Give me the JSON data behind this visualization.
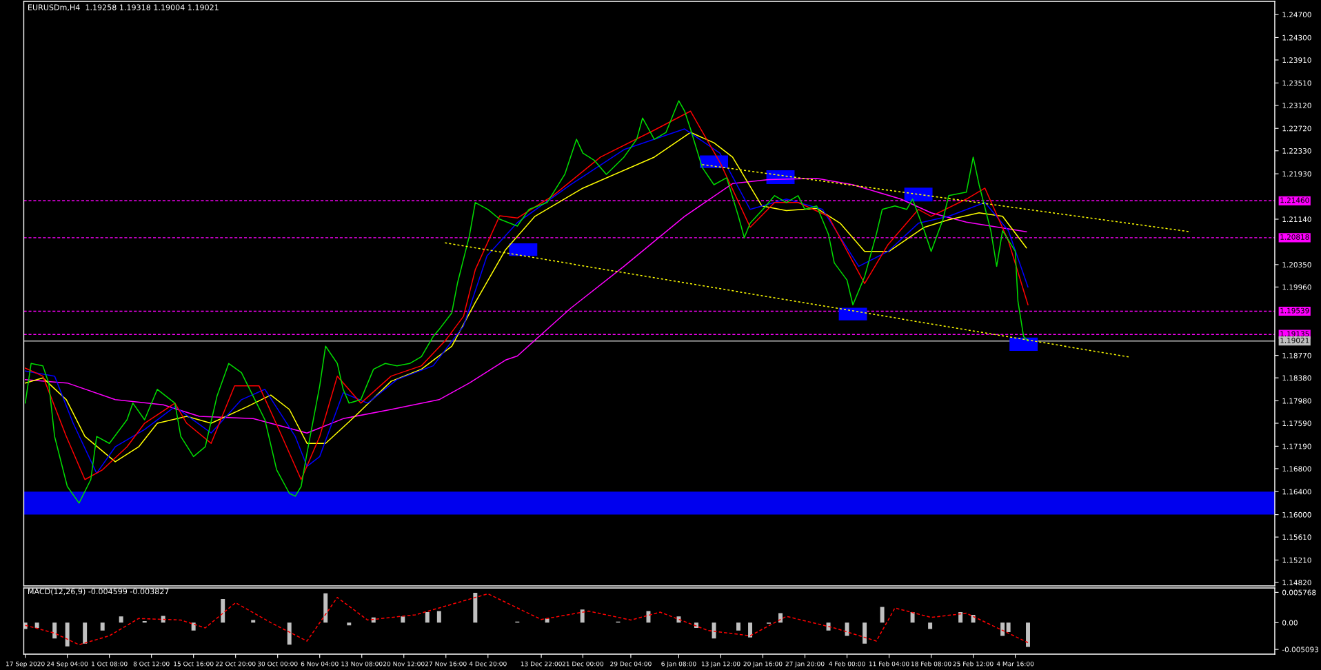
{
  "chart_data": [
    {
      "type": "line",
      "title": "EURUSDm,H4  1.19258 1.19318 1.19004 1.19021",
      "xlim": [
        "2020-09-16T18:00",
        "2021-04-17T21:00"
      ],
      "ylim": [
        1.1476,
        1.2493
      ],
      "tick_labels": "y",
      "grid": false,
      "yticks": [
        {
          "value": 1.247,
          "label": "1.24700"
        },
        {
          "value": 1.243,
          "label": "1.24300"
        },
        {
          "value": 1.2391,
          "label": "1.23910"
        },
        {
          "value": 1.2351,
          "label": "1.23510"
        },
        {
          "value": 1.2312,
          "label": "1.23120"
        },
        {
          "value": 1.2272,
          "label": "1.22720"
        },
        {
          "value": 1.2233,
          "label": "1.22330"
        },
        {
          "value": 1.2193,
          "label": "1.21930"
        },
        {
          "value": 1.2114,
          "label": "1.21140"
        },
        {
          "value": 1.2035,
          "label": "1.20350"
        },
        {
          "value": 1.1996,
          "label": "1.19960"
        },
        {
          "value": 1.1877,
          "label": "1.18770"
        },
        {
          "value": 1.1838,
          "label": "1.18380"
        },
        {
          "value": 1.1798,
          "label": "1.17980"
        },
        {
          "value": 1.1759,
          "label": "1.17590"
        },
        {
          "value": 1.1719,
          "label": "1.17190"
        },
        {
          "value": 1.168,
          "label": "1.16800"
        },
        {
          "value": 1.164,
          "label": "1.16400"
        },
        {
          "value": 1.16,
          "label": "1.16000"
        },
        {
          "value": 1.1561,
          "label": "1.15610"
        },
        {
          "value": 1.1521,
          "label": "1.15210"
        },
        {
          "value": 1.1482,
          "label": "1.14820"
        }
      ],
      "bands": [
        {
          "axis": "y",
          "from": 1.16,
          "to": 1.164,
          "color": "#0000ee"
        }
      ],
      "ref_lines": [
        {
          "axis": "y",
          "value": 1.2146,
          "label": "1.21460",
          "color": "#ff00ff",
          "line_style": "dashed"
        },
        {
          "axis": "y",
          "value": 1.20818,
          "label": "1.20818",
          "color": "#ff00ff",
          "line_style": "dashed"
        },
        {
          "axis": "y",
          "value": 1.19539,
          "label": "1.19539",
          "color": "#ff00ff",
          "line_style": "dashed"
        },
        {
          "axis": "y",
          "value": 1.19135,
          "label": "1.19135",
          "color": "#ff00ff",
          "line_style": "dashed"
        },
        {
          "axis": "y",
          "value": 1.19021,
          "label": "1.19021",
          "color": "#c0c0c0",
          "line_style": "solid"
        }
      ],
      "series": [
        {
          "type": "bar",
          "color": "#0000ff",
          "x": [
            "2020-12-10T20:00",
            "2021-01-12T08:00",
            "2021-01-23T16:00",
            "2021-02-05T00:00",
            "2021-02-16T04:00",
            "2021-03-06T02:00"
          ],
          "base": [
            1.205,
            1.2203,
            1.2175,
            1.1938,
            1.2145,
            1.1885
          ],
          "values": [
            0.0022,
            0.0022,
            0.0024,
            0.0022,
            0.0024,
            0.0023
          ]
        },
        {
          "color": "#ff00ff",
          "x": [
            "2020-09-17T00:00",
            "2020-09-24T04:00",
            "2020-10-02T08:00",
            "2020-10-10T12:00",
            "2020-10-16T16:00",
            "2020-10-25T20:00",
            "2020-10-31T00:00",
            "2020-11-04T00:00",
            "2020-11-10T04:00",
            "2020-11-18T08:00",
            "2020-11-26T12:00",
            "2020-12-01T16:00",
            "2020-12-07T20:00",
            "2020-12-09T20:00",
            "2020-12-18T22:00",
            "2020-12-28T00:00",
            "2021-01-07T08:00",
            "2021-01-15T12:00",
            "2021-01-21T16:00",
            "2021-01-29T20:00",
            "2021-02-05T00:00",
            "2021-02-13T04:00",
            "2021-02-18T08:00",
            "2021-02-24T08:00",
            "2021-03-06T14:00"
          ],
          "values": [
            1.1835,
            1.1829,
            1.18,
            1.1791,
            1.1771,
            1.1767,
            1.1753,
            1.1742,
            1.1767,
            1.1783,
            1.18,
            1.1829,
            1.1869,
            1.1876,
            1.1959,
            1.2032,
            1.2119,
            1.2176,
            1.2183,
            1.2185,
            1.2174,
            1.2149,
            1.2125,
            1.2109,
            1.2092
          ]
        },
        {
          "color": "#ffff00",
          "x": [
            "2020-09-17T00:00",
            "2020-09-20T00:00",
            "2020-09-24T00:00",
            "2020-09-27T04:00",
            "2020-10-02T08:00",
            "2020-10-06T08:00",
            "2020-10-09T12:00",
            "2020-10-14T12:00",
            "2020-10-18T16:00",
            "2020-10-24T20:00",
            "2020-10-28T20:00",
            "2020-11-01T00:00",
            "2020-11-04T00:00",
            "2020-11-07T04:00",
            "2020-11-12T04:00",
            "2020-11-18T08:00",
            "2020-11-23T12:00",
            "2020-11-28T16:00",
            "2020-12-02T16:00",
            "2020-12-07T20:00",
            "2020-12-12T20:00",
            "2020-12-21T00:00",
            "2021-01-02T04:00",
            "2021-01-08T08:00",
            "2021-01-12T08:00",
            "2021-01-15T12:00",
            "2021-01-20T12:00",
            "2021-01-24T16:00",
            "2021-01-29T20:00",
            "2021-02-02T20:00",
            "2021-02-07T00:00",
            "2021-02-11T04:00",
            "2021-02-17T04:00",
            "2021-02-21T08:00",
            "2021-02-26T12:00",
            "2021-03-02T12:00",
            "2021-03-06T14:00"
          ],
          "values": [
            1.1829,
            1.1838,
            1.18,
            1.1736,
            1.1692,
            1.1718,
            1.1759,
            1.1771,
            1.1759,
            1.1788,
            1.1808,
            1.1783,
            1.1724,
            1.1724,
            1.1771,
            1.1832,
            1.1853,
            1.1893,
            1.1969,
            1.2061,
            1.2119,
            1.2168,
            1.2222,
            1.2265,
            1.2247,
            1.2222,
            1.2137,
            1.2129,
            1.2133,
            1.2107,
            1.2058,
            1.2058,
            1.21,
            1.2113,
            1.2125,
            1.2119,
            1.2064
          ]
        },
        {
          "color": "#0000ff",
          "x": [
            "2020-09-17T00:00",
            "2020-09-22T00:00",
            "2020-09-25T04:00",
            "2020-09-29T04:00",
            "2020-10-02T08:00",
            "2020-10-07T08:00",
            "2020-10-12T12:00",
            "2020-10-18T16:00",
            "2020-10-23T20:00",
            "2020-10-27T20:00",
            "2020-11-02T00:00",
            "2020-11-04T00:00",
            "2020-11-06T04:00",
            "2020-11-10T04:00",
            "2020-11-14T08:00",
            "2020-11-19T08:00",
            "2020-11-25T12:00",
            "2020-11-30T16:00",
            "2020-12-04T16:00",
            "2020-12-09T20:00",
            "2020-12-18T22:00",
            "2020-12-28T00:00",
            "2021-01-07T08:00",
            "2021-01-13T08:00",
            "2021-01-18T12:00",
            "2021-01-24T16:00",
            "2021-01-30T20:00",
            "2021-02-06T00:00",
            "2021-02-11T00:00",
            "2021-02-16T04:00",
            "2021-02-21T08:00",
            "2021-02-27T12:00",
            "2021-03-03T12:00",
            "2021-03-06T20:00"
          ],
          "values": [
            1.185,
            1.1841,
            1.1759,
            1.1672,
            1.1718,
            1.1748,
            1.1788,
            1.1742,
            1.18,
            1.1818,
            1.1736,
            1.1684,
            1.1701,
            1.1812,
            1.1794,
            1.1835,
            1.1859,
            1.1928,
            1.205,
            1.2108,
            1.2174,
            1.2235,
            1.2271,
            1.2229,
            1.2131,
            1.2149,
            1.2131,
            1.2032,
            1.2058,
            1.2107,
            1.2119,
            1.2143,
            1.2094,
            1.1996
          ]
        },
        {
          "color": "#ff0000",
          "x": [
            "2020-09-17T00:00",
            "2020-09-20T00:00",
            "2020-09-24T00:00",
            "2020-09-27T04:00",
            "2020-09-30T04:00",
            "2020-10-04T08:00",
            "2020-10-07T08:00",
            "2020-10-12T12:00",
            "2020-10-14T12:00",
            "2020-10-18T16:00",
            "2020-10-22T16:00",
            "2020-10-26T20:00",
            "2020-10-30T00:00",
            "2020-11-03T00:00",
            "2020-11-06T04:00",
            "2020-11-09T04:00",
            "2020-11-13T04:00",
            "2020-11-18T08:00",
            "2020-11-23T12:00",
            "2020-11-27T16:00",
            "2020-11-30T16:00",
            "2020-12-02T16:00",
            "2020-12-06T20:00",
            "2020-12-09T20:00",
            "2020-12-15T22:00",
            "2020-12-24T00:00",
            "2021-01-02T04:00",
            "2021-01-08T08:00",
            "2021-01-13T12:00",
            "2021-01-18T12:00",
            "2021-01-22T16:00",
            "2021-01-26T16:00",
            "2021-01-31T20:00",
            "2021-02-07T00:00",
            "2021-02-11T00:00",
            "2021-02-16T04:00",
            "2021-02-18T08:00",
            "2021-02-24T08:00",
            "2021-02-27T12:00",
            "2021-03-03T12:00",
            "2021-03-06T20:00"
          ],
          "values": [
            1.1855,
            1.1841,
            1.1736,
            1.1661,
            1.1678,
            1.1718,
            1.1759,
            1.1794,
            1.1759,
            1.1724,
            1.1824,
            1.1824,
            1.1753,
            1.1661,
            1.1736,
            1.1841,
            1.1794,
            1.1841,
            1.1859,
            1.1904,
            1.1945,
            1.2026,
            1.212,
            1.2116,
            1.2155,
            1.2222,
            1.2269,
            1.2302,
            1.221,
            1.21,
            1.2143,
            1.2143,
            1.2119,
            1.2002,
            1.207,
            1.2131,
            1.2119,
            1.2149,
            1.2168,
            1.2076,
            1.1965
          ]
        },
        {
          "color": "#00dd00",
          "x": [
            "2020-09-17T00:00",
            "2020-09-18T00:00",
            "2020-09-20T00:00",
            "2020-09-21T00:00",
            "2020-09-22T00:00",
            "2020-09-24T04:00",
            "2020-09-26T04:00",
            "2020-09-28T04:00",
            "2020-09-29T04:00",
            "2020-10-01T08:00",
            "2020-10-04T08:00",
            "2020-10-05T08:00",
            "2020-10-07T08:00",
            "2020-10-09T12:00",
            "2020-10-12T12:00",
            "2020-10-13T12:00",
            "2020-10-15T16:00",
            "2020-10-17T16:00",
            "2020-10-19T16:00",
            "2020-10-21T16:00",
            "2020-10-23T20:00",
            "2020-10-25T20:00",
            "2020-10-27T20:00",
            "2020-10-29T20:00",
            "2020-11-01T00:00",
            "2020-11-02T00:00",
            "2020-11-03T00:00",
            "2020-11-04T00:00",
            "2020-11-06T04:00",
            "2020-11-07T04:00",
            "2020-11-09T04:00",
            "2020-11-10T04:00",
            "2020-11-11T04:00",
            "2020-11-13T04:00",
            "2020-11-15T08:00",
            "2020-11-17T08:00",
            "2020-11-19T08:00",
            "2020-11-21T12:00",
            "2020-11-23T12:00",
            "2020-11-25T12:00",
            "2020-11-26T12:00",
            "2020-11-28T16:00",
            "2020-11-29T16:00",
            "2020-12-01T16:00",
            "2020-12-02T16:00",
            "2020-12-04T20:00",
            "2020-12-06T20:00",
            "2020-12-09T20:00",
            "2020-12-11T20:00",
            "2020-12-14T22:00",
            "2020-12-17T22:00",
            "2020-12-19T22:00",
            "2020-12-21T00:00",
            "2020-12-23T00:00",
            "2020-12-25T00:00",
            "2020-12-28T00:00",
            "2020-12-30T04:00",
            "2020-12-31T04:00",
            "2021-01-02T04:00",
            "2021-01-04T04:00",
            "2021-01-06T08:00",
            "2021-01-07T08:00",
            "2021-01-08T08:00",
            "2021-01-10T08:00",
            "2021-01-12T08:00",
            "2021-01-14T12:00",
            "2021-01-16T12:00",
            "2021-01-17T12:00",
            "2021-01-18T12:00",
            "2021-01-20T16:00",
            "2021-01-22T16:00",
            "2021-01-24T16:00",
            "2021-01-26T16:00",
            "2021-01-27T20:00",
            "2021-01-29T20:00",
            "2021-01-31T20:00",
            "2021-02-01T20:00",
            "2021-02-04T00:00",
            "2021-02-05T00:00",
            "2021-02-07T00:00",
            "2021-02-09T00:00",
            "2021-02-10T00:00",
            "2021-02-12T04:00",
            "2021-02-14T04:00",
            "2021-02-15T04:00",
            "2021-02-17T04:00",
            "2021-02-18T08:00",
            "2021-02-20T08:00",
            "2021-02-21T08:00",
            "2021-02-24T08:00",
            "2021-02-25T12:00",
            "2021-02-26T12:00",
            "2021-02-28T12:00",
            "2021-03-01T12:00",
            "2021-03-02T12:00",
            "2021-03-04T16:00",
            "2021-03-05T03:00",
            "2021-03-06T02:00",
            "2021-03-06T20:00"
          ],
          "values": [
            1.1794,
            1.1863,
            1.1859,
            1.1829,
            1.1736,
            1.1649,
            1.162,
            1.1661,
            1.1736,
            1.1724,
            1.1765,
            1.1794,
            1.1765,
            1.1818,
            1.1794,
            1.1736,
            1.1701,
            1.1718,
            1.1806,
            1.1863,
            1.1847,
            1.1806,
            1.1765,
            1.1678,
            1.1637,
            1.1632,
            1.1649,
            1.1707,
            1.1824,
            1.1893,
            1.1863,
            1.1818,
            1.1794,
            1.18,
            1.1853,
            1.1863,
            1.1859,
            1.1863,
            1.1875,
            1.191,
            1.1922,
            1.1951,
            1.2004,
            1.2085,
            1.2143,
            1.2131,
            1.2114,
            1.2102,
            1.2131,
            1.2143,
            1.2192,
            1.2253,
            1.2229,
            1.2216,
            1.2192,
            1.2222,
            1.2253,
            1.229,
            1.2253,
            1.2265,
            1.232,
            1.2302,
            1.2271,
            1.2204,
            1.2174,
            1.2186,
            1.2119,
            1.2082,
            1.2107,
            1.2131,
            1.2155,
            1.2143,
            1.2155,
            1.2131,
            1.2137,
            1.2088,
            1.2038,
            1.2008,
            1.1965,
            1.2014,
            1.2088,
            1.2131,
            1.2137,
            1.2131,
            1.2149,
            1.2094,
            1.2058,
            1.2113,
            1.2155,
            1.2161,
            1.2222,
            1.2174,
            1.2094,
            1.2032,
            1.2094,
            1.2058,
            1.1971,
            1.191,
            1.1902
          ]
        },
        {
          "color": "#ffff00",
          "line_style": "dotted",
          "x": [
            "2021-01-10T08:00",
            "2021-04-03T13:00"
          ],
          "values": [
            1.2209,
            1.2092
          ]
        },
        {
          "color": "#ffff00",
          "line_style": "dotted",
          "x": [
            "2020-11-27T12:00",
            "2021-03-24T06:00"
          ],
          "values": [
            1.2073,
            1.1874
          ]
        }
      ]
    },
    {
      "type": "bar",
      "title": "MACD(12,26,9) -0.004599 -0.003827",
      "xlim": [
        "2020-09-16T18:00",
        "2021-04-17T21:00"
      ],
      "ylim": [
        -0.006,
        0.0066
      ],
      "grid": false,
      "yticks": [
        0.005768,
        {
          "value": 0,
          "label": "0.00"
        },
        -0.005093
      ],
      "xticks": [
        {
          "value": "2020-09-17T00:00",
          "label": "17 Sep 2020"
        },
        {
          "value": "2020-09-24T04:00",
          "label": "24 Sep 04:00"
        },
        {
          "value": "2020-10-01T08:00",
          "label": "1 Oct 08:00"
        },
        {
          "value": "2020-10-08T12:00",
          "label": "8 Oct 12:00"
        },
        {
          "value": "2020-10-15T16:00",
          "label": "15 Oct 16:00"
        },
        {
          "value": "2020-10-22T20:00",
          "label": "22 Oct 20:00"
        },
        {
          "value": "2020-10-30T00:00",
          "label": "30 Oct 00:00"
        },
        {
          "value": "2020-11-06T04:00",
          "label": "6 Nov 04:00"
        },
        {
          "value": "2020-11-13T08:00",
          "label": "13 Nov 08:00"
        },
        {
          "value": "2020-11-20T12:00",
          "label": "20 Nov 12:00"
        },
        {
          "value": "2020-11-27T16:00",
          "label": "27 Nov 16:00"
        },
        {
          "value": "2020-12-04T20:00",
          "label": "4 Dec 20:00"
        },
        {
          "value": "2020-12-13T22:00",
          "label": "13 Dec 22:00"
        },
        {
          "value": "2020-12-21T00:00",
          "label": "21 Dec 00:00"
        },
        {
          "value": "2020-12-29T04:00",
          "label": "29 Dec 04:00"
        },
        {
          "value": "2021-01-06T08:00",
          "label": "6 Jan 08:00"
        },
        {
          "value": "2021-01-13T12:00",
          "label": "13 Jan 12:00"
        },
        {
          "value": "2021-01-20T16:00",
          "label": "20 Jan 16:00"
        },
        {
          "value": "2021-01-27T20:00",
          "label": "27 Jan 20:00"
        },
        {
          "value": "2021-02-04T00:00",
          "label": "4 Feb 00:00"
        },
        {
          "value": "2021-02-11T04:00",
          "label": "11 Feb 04:00"
        },
        {
          "value": "2021-02-18T08:00",
          "label": "18 Feb 08:00"
        },
        {
          "value": "2021-02-25T12:00",
          "label": "25 Feb 12:00"
        },
        {
          "value": "2021-03-04T16:00",
          "label": "4 Mar 16:00"
        }
      ],
      "series": [
        {
          "color": "#c0c0c0",
          "x": [
            "2020-09-17T00:00",
            "2020-09-19T00:00",
            "2020-09-22T00:00",
            "2020-09-24T04:00",
            "2020-09-27T04:00",
            "2020-09-30T04:00",
            "2020-10-03T08:00",
            "2020-10-07T08:00",
            "2020-10-10T12:00",
            "2020-10-15T16:00",
            "2020-10-20T16:00",
            "2020-10-25T20:00",
            "2020-11-01T00:00",
            "2020-11-07T04:00",
            "2020-11-11T04:00",
            "2020-11-15T08:00",
            "2020-11-20T08:00",
            "2020-11-24T12:00",
            "2020-11-26T12:00",
            "2020-12-02T16:00",
            "2020-12-09T20:00",
            "2020-12-14T22:00",
            "2020-12-20T22:00",
            "2020-12-27T00:00",
            "2021-01-01T04:00",
            "2021-01-06T08:00",
            "2021-01-09T08:00",
            "2021-01-12T08:00",
            "2021-01-16T12:00",
            "2021-01-18T12:00",
            "2021-01-21T16:00",
            "2021-01-23T16:00",
            "2021-01-28T20:00",
            "2021-01-31T20:00",
            "2021-02-04T00:00",
            "2021-02-07T00:00",
            "2021-02-10T00:00",
            "2021-02-15T04:00",
            "2021-02-18T04:00",
            "2021-02-23T08:00",
            "2021-02-25T12:00",
            "2021-03-02T12:00",
            "2021-03-03T12:00",
            "2021-03-06T20:00"
          ],
          "values": [
            -0.0012,
            -0.001,
            -0.003,
            -0.0045,
            -0.004,
            -0.0015,
            0.0012,
            0.0003,
            0.0013,
            -0.0015,
            0.0045,
            0.0005,
            -0.0042,
            0.0056,
            -0.0005,
            0.001,
            0.0012,
            0.002,
            0.0022,
            0.0057,
            0.0002,
            0.0008,
            0.0025,
            0.0002,
            0.0022,
            0.0012,
            -0.001,
            -0.003,
            -0.0015,
            -0.0028,
            -0.0002,
            0.0018,
            0.0,
            -0.0015,
            -0.0025,
            -0.004,
            0.003,
            0.002,
            -0.0012,
            0.002,
            0.0015,
            -0.0025,
            -0.0018,
            -0.0046
          ]
        },
        {
          "type": "line",
          "color": "#ff0000",
          "line_style": "dashed",
          "x": [
            "2020-09-17T00:00",
            "2020-09-22T00:00",
            "2020-09-26T04:00",
            "2020-10-01T08:00",
            "2020-10-06T08:00",
            "2020-10-13T12:00",
            "2020-10-17T16:00",
            "2020-10-22T20:00",
            "2020-10-28T20:00",
            "2020-11-04T00:00",
            "2020-11-09T04:00",
            "2020-11-14T08:00",
            "2020-11-22T12:00",
            "2020-12-04T20:00",
            "2020-12-13T22:00",
            "2020-12-22T00:00",
            "2020-12-29T04:00",
            "2021-01-03T04:00",
            "2021-01-11T08:00",
            "2021-01-18T12:00",
            "2021-01-24T16:00",
            "2021-02-01T20:00",
            "2021-02-09T00:00",
            "2021-02-12T04:00",
            "2021-02-18T08:00",
            "2021-02-24T08:00",
            "2021-03-03T12:00",
            "2021-03-06T20:00"
          ],
          "values": [
            -0.0005,
            -0.002,
            -0.0042,
            -0.0025,
            0.0008,
            0.0005,
            -0.001,
            0.0038,
            0.0,
            -0.0035,
            0.0048,
            0.0005,
            0.0015,
            0.0055,
            0.0006,
            0.0022,
            0.0005,
            0.002,
            -0.0015,
            -0.0025,
            0.0012,
            -0.001,
            -0.0035,
            0.0028,
            0.001,
            0.0018,
            -0.002,
            -0.0038
          ]
        }
      ]
    }
  ]
}
